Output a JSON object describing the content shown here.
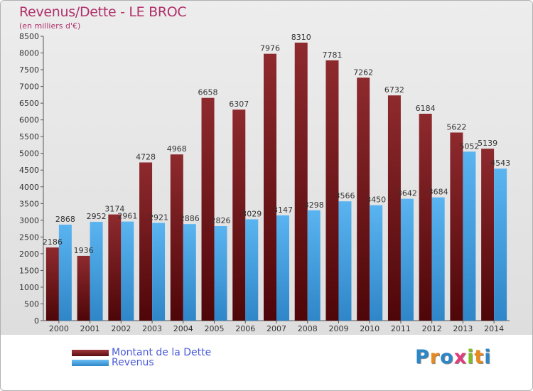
{
  "title": "Revenus/Dette - LE BROC",
  "subtitle": "(en milliers d'€)",
  "chart_data": {
    "type": "bar",
    "title": "Revenus/Dette - LE BROC",
    "subtitle": "(en milliers d'€)",
    "xlabel": "",
    "ylabel": "",
    "ylim": [
      0,
      8500
    ],
    "ytick_step": 500,
    "categories": [
      "2000",
      "2001",
      "2002",
      "2003",
      "2004",
      "2005",
      "2006",
      "2007",
      "2008",
      "2009",
      "2010",
      "2011",
      "2012",
      "2013",
      "2014"
    ],
    "series": [
      {
        "name": "Montant de la Dette",
        "color": "#7a1a1e",
        "values": [
          2186,
          1936,
          3174,
          4728,
          4968,
          6658,
          6307,
          7976,
          8310,
          7781,
          7262,
          6732,
          6184,
          5622,
          5139
        ]
      },
      {
        "name": "Revenus",
        "color": "#4aa6e8",
        "values": [
          2868,
          2952,
          2961,
          2921,
          2886,
          2826,
          3029,
          3147,
          3298,
          3566,
          3450,
          3642,
          3684,
          5052,
          4543
        ]
      }
    ],
    "legend_position": "bottom-left",
    "grid": false
  },
  "legend": [
    {
      "label": "Montant de la Dette",
      "color": "#6a1518"
    },
    {
      "label": "Revenus",
      "color": "#3d9be0"
    }
  ],
  "logo": {
    "letters": [
      "P",
      "r",
      "o",
      "x",
      "i",
      "t",
      "i"
    ],
    "colors": [
      "#2c86c8",
      "#e98a1c",
      "#2c86c8",
      "#e23a7a",
      "#7cbb2a",
      "#e98a1c",
      "#2c86c8"
    ]
  }
}
